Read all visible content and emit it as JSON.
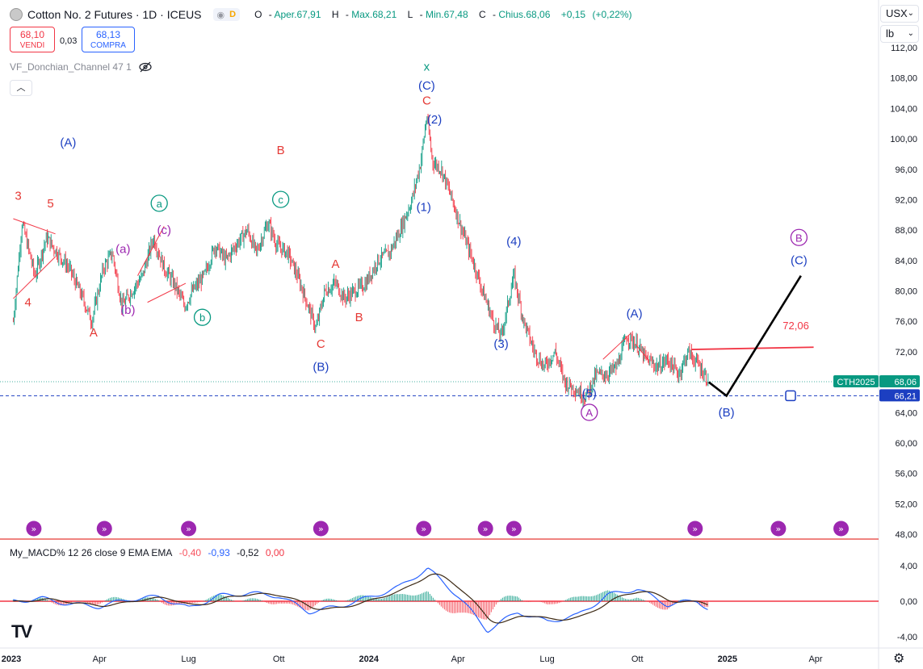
{
  "header": {
    "title": "Cotton No. 2 Futures · 1D · ICEUS",
    "badge": "D",
    "ohlc": [
      {
        "k": "O",
        "v": "Aper.67,91"
      },
      {
        "k": "H",
        "v": "Max.68,21"
      },
      {
        "k": "L",
        "v": "Min.67,48"
      },
      {
        "k": "C",
        "v": "Chius.68,06"
      },
      {
        "k": "",
        "v": "+0,15"
      },
      {
        "k": "",
        "v": "(+0,22%)"
      }
    ]
  },
  "trade": {
    "sell_price": "68,10",
    "sell_label": "VENDI",
    "spread": "0,03",
    "buy_price": "68,13",
    "buy_label": "COMPRA"
  },
  "indicator1": {
    "name": "VF_Donchian_Channel 47 1"
  },
  "indicator2": {
    "name": "My_MACD% 12 26 close 9 EMA EMA",
    "values": [
      {
        "v": "-0,40",
        "color": "#f7525f"
      },
      {
        "v": "-0,93",
        "color": "#2962ff"
      },
      {
        "v": "-0,52",
        "color": "#131722"
      },
      {
        "v": "0,00",
        "color": "#f23645"
      }
    ]
  },
  "currency": {
    "label": "USX",
    "unit": "lb"
  },
  "colors": {
    "up": "#089981",
    "down": "#f23645",
    "blue": "#1c3fc1",
    "purple": "#9c27b0",
    "red": "#e53935",
    "teal": "#089981"
  },
  "chart_data": {
    "type": "candlestick",
    "symbol_label": "CTH2025",
    "last_price": 68.06,
    "last_price_label": "68,06",
    "level_price": 66.21,
    "level_price_label": "66,21",
    "resistance_label": "72,06",
    "y_range": [
      47.5,
      113
    ],
    "y_ticks": [
      112,
      108,
      104,
      100,
      96,
      92,
      88,
      84,
      80,
      76,
      72,
      68,
      64,
      60,
      56,
      52,
      48
    ],
    "y_tick_labels": [
      "112,00",
      "108,00",
      "104,00",
      "100,00",
      "96,00",
      "92,00",
      "88,00",
      "84,00",
      "80,00",
      "76,00",
      "72,00",
      "68,00",
      "64,00",
      "60,00",
      "56,00",
      "52,00",
      "48,00"
    ],
    "x_ticks": [
      {
        "date": "2023-01-01",
        "label": "2023"
      },
      {
        "date": "2023-04-01",
        "label": "Apr"
      },
      {
        "date": "2023-07-01",
        "label": "Lug"
      },
      {
        "date": "2023-10-01",
        "label": "Ott"
      },
      {
        "date": "2024-01-01",
        "label": "2024"
      },
      {
        "date": "2024-04-01",
        "label": "Apr"
      },
      {
        "date": "2024-07-01",
        "label": "Lug"
      },
      {
        "date": "2024-10-01",
        "label": "Ott"
      },
      {
        "date": "2025-01-01",
        "label": "2025"
      },
      {
        "date": "2025-04-01",
        "label": "Apr"
      }
    ],
    "price_path": [
      [
        "2023-01-03",
        76
      ],
      [
        "2023-01-12",
        89
      ],
      [
        "2023-01-25",
        82
      ],
      [
        "2023-02-06",
        87
      ],
      [
        "2023-02-17",
        85
      ],
      [
        "2023-03-01",
        83
      ],
      [
        "2023-03-15",
        79
      ],
      [
        "2023-03-24",
        76
      ],
      [
        "2023-04-05",
        83
      ],
      [
        "2023-04-14",
        85
      ],
      [
        "2023-04-24",
        78
      ],
      [
        "2023-05-04",
        80
      ],
      [
        "2023-05-15",
        82
      ],
      [
        "2023-05-26",
        87
      ],
      [
        "2023-06-06",
        83
      ],
      [
        "2023-06-16",
        81
      ],
      [
        "2023-06-27",
        78
      ],
      [
        "2023-07-05",
        80
      ],
      [
        "2023-07-17",
        82
      ],
      [
        "2023-07-28",
        86
      ],
      [
        "2023-08-08",
        84
      ],
      [
        "2023-08-18",
        86
      ],
      [
        "2023-08-30",
        88
      ],
      [
        "2023-09-08",
        85
      ],
      [
        "2023-09-20",
        89
      ],
      [
        "2023-09-29",
        86
      ],
      [
        "2023-10-10",
        85
      ],
      [
        "2023-10-20",
        82
      ],
      [
        "2023-10-31",
        78
      ],
      [
        "2023-11-08",
        75
      ],
      [
        "2023-11-17",
        80
      ],
      [
        "2023-11-28",
        81
      ],
      [
        "2023-12-07",
        79
      ],
      [
        "2023-12-18",
        80
      ],
      [
        "2023-12-29",
        81
      ],
      [
        "2024-01-10",
        84
      ],
      [
        "2024-01-22",
        85
      ],
      [
        "2024-02-02",
        88
      ],
      [
        "2024-02-14",
        92
      ],
      [
        "2024-02-23",
        97
      ],
      [
        "2024-02-29",
        103
      ],
      [
        "2024-03-06",
        97
      ],
      [
        "2024-03-15",
        96
      ],
      [
        "2024-03-26",
        92
      ],
      [
        "2024-04-05",
        88
      ],
      [
        "2024-04-16",
        84
      ],
      [
        "2024-04-26",
        80
      ],
      [
        "2024-05-07",
        76
      ],
      [
        "2024-05-15",
        74
      ],
      [
        "2024-05-28",
        82
      ],
      [
        "2024-06-07",
        76
      ],
      [
        "2024-06-18",
        72
      ],
      [
        "2024-06-28",
        70
      ],
      [
        "2024-07-09",
        72
      ],
      [
        "2024-07-19",
        68
      ],
      [
        "2024-07-31",
        67
      ],
      [
        "2024-08-09",
        66
      ],
      [
        "2024-08-20",
        69
      ],
      [
        "2024-08-30",
        69
      ],
      [
        "2024-09-10",
        70
      ],
      [
        "2024-09-20",
        74
      ],
      [
        "2024-09-30",
        73
      ],
      [
        "2024-10-10",
        71
      ],
      [
        "2024-10-22",
        70
      ],
      [
        "2024-11-01",
        71
      ],
      [
        "2024-11-12",
        69
      ],
      [
        "2024-11-22",
        72
      ],
      [
        "2024-12-04",
        70
      ],
      [
        "2024-12-13",
        68.06
      ]
    ],
    "waves": [
      {
        "label": "3",
        "date": "2023-01-08",
        "price": 92,
        "color": "red"
      },
      {
        "label": "5",
        "date": "2023-02-10",
        "price": 91,
        "color": "red"
      },
      {
        "label": "(A)",
        "date": "2023-02-28",
        "price": 99,
        "color": "blue"
      },
      {
        "label": "4",
        "date": "2023-01-18",
        "price": 78,
        "color": "red"
      },
      {
        "label": "A",
        "date": "2023-03-26",
        "price": 74,
        "color": "red"
      },
      {
        "label": "(a)",
        "date": "2023-04-25",
        "price": 85,
        "color": "purple"
      },
      {
        "label": "(b)",
        "date": "2023-04-30",
        "price": 77,
        "color": "purple"
      },
      {
        "label": "(c)",
        "date": "2023-06-06",
        "price": 87.5,
        "color": "purple"
      },
      {
        "label": "a",
        "date": "2023-06-01",
        "price": 91,
        "color": "teal",
        "circle": true
      },
      {
        "label": "b",
        "date": "2023-07-15",
        "price": 76,
        "color": "teal",
        "circle": true
      },
      {
        "label": "c",
        "date": "2023-10-03",
        "price": 91.5,
        "color": "teal",
        "circle": true
      },
      {
        "label": "B",
        "date": "2023-10-03",
        "price": 98,
        "color": "red"
      },
      {
        "label": "A",
        "date": "2023-11-28",
        "price": 83,
        "color": "red"
      },
      {
        "label": "B",
        "date": "2023-12-22",
        "price": 76,
        "color": "red"
      },
      {
        "label": "C",
        "date": "2023-11-13",
        "price": 72.5,
        "color": "red"
      },
      {
        "label": "(B)",
        "date": "2023-11-13",
        "price": 69.5,
        "color": "blue"
      },
      {
        "label": "x",
        "date": "2024-02-29",
        "price": 109,
        "color": "teal"
      },
      {
        "label": "(C)",
        "date": "2024-02-29",
        "price": 106.5,
        "color": "blue"
      },
      {
        "label": "C",
        "date": "2024-02-29",
        "price": 104.5,
        "color": "red"
      },
      {
        "label": "(2)",
        "date": "2024-03-08",
        "price": 102,
        "color": "blue"
      },
      {
        "label": "(1)",
        "date": "2024-02-26",
        "price": 90.5,
        "color": "blue"
      },
      {
        "label": "(4)",
        "date": "2024-05-28",
        "price": 86,
        "color": "blue"
      },
      {
        "label": "(3)",
        "date": "2024-05-15",
        "price": 72.5,
        "color": "blue"
      },
      {
        "label": "(A)",
        "date": "2024-09-28",
        "price": 76.5,
        "color": "blue"
      },
      {
        "label": "(5)",
        "date": "2024-08-13",
        "price": 66,
        "color": "blue"
      },
      {
        "label": "A",
        "date": "2024-08-13",
        "price": 63.5,
        "color": "purple",
        "circle": true
      },
      {
        "label": "(B)",
        "date": "2024-12-31",
        "price": 63.5,
        "color": "blue"
      },
      {
        "label": "B",
        "date": "2025-03-15",
        "price": 86.5,
        "color": "purple",
        "circle": true
      },
      {
        "label": "(C)",
        "date": "2025-03-15",
        "price": 83.5,
        "color": "blue"
      }
    ],
    "projection": [
      [
        "2024-12-13",
        68
      ],
      [
        "2024-12-31",
        66.21
      ],
      [
        "2025-03-17",
        82
      ]
    ],
    "resistance": [
      [
        "2024-11-25",
        72.3
      ],
      [
        "2025-03-30",
        72.6
      ]
    ],
    "event_dates": [
      "2023-01-24",
      "2023-04-06",
      "2023-07-01",
      "2023-11-13",
      "2024-02-26",
      "2024-04-29",
      "2024-05-28",
      "2024-11-29",
      "2025-02-22",
      "2025-04-27"
    ],
    "macd": {
      "y_range": [
        -4.8,
        5
      ],
      "y_ticks": [
        4,
        0,
        -4
      ],
      "y_tick_labels": [
        "4,00",
        "0,00",
        "-4,00"
      ],
      "path": [
        [
          "2023-01-03",
          0.0
        ],
        [
          "2023-02-01",
          0.3
        ],
        [
          "2023-03-01",
          -0.3
        ],
        [
          "2023-04-01",
          -0.6
        ],
        [
          "2023-05-01",
          0.2
        ],
        [
          "2023-06-01",
          0.5
        ],
        [
          "2023-07-01",
          -0.8
        ],
        [
          "2023-08-01",
          0.6
        ],
        [
          "2023-09-01",
          0.9
        ],
        [
          "2023-10-01",
          0.6
        ],
        [
          "2023-11-01",
          -1.2
        ],
        [
          "2023-12-01",
          -0.6
        ],
        [
          "2024-01-01",
          0.4
        ],
        [
          "2024-02-01",
          1.6
        ],
        [
          "2024-03-01",
          3.7
        ],
        [
          "2024-04-01",
          0.6
        ],
        [
          "2024-05-01",
          -3.3
        ],
        [
          "2024-06-01",
          -1.2
        ],
        [
          "2024-07-01",
          -2.3
        ],
        [
          "2024-08-01",
          -1.6
        ],
        [
          "2024-09-01",
          0.7
        ],
        [
          "2024-10-01",
          1.4
        ],
        [
          "2024-11-01",
          -0.4
        ],
        [
          "2024-12-01",
          0.1
        ],
        [
          "2024-12-13",
          -0.93
        ]
      ]
    }
  }
}
